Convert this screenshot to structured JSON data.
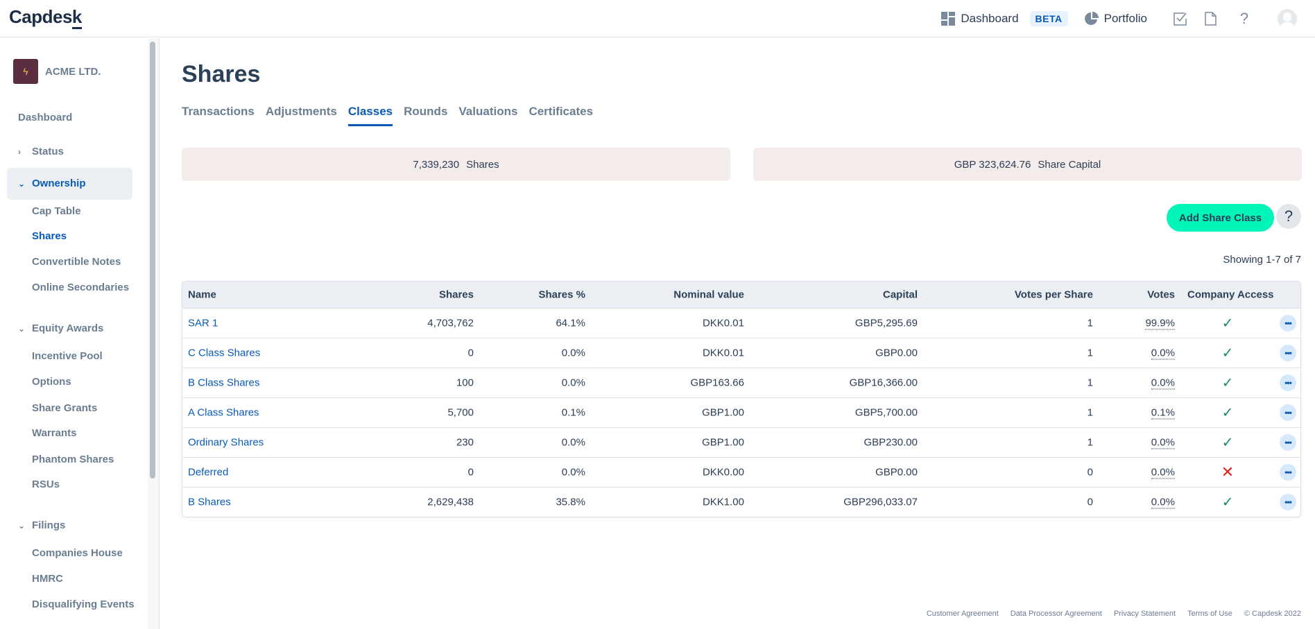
{
  "header": {
    "logo": "Capdesk",
    "dashboard_label": "Dashboard",
    "beta_badge": "BETA",
    "portfolio_label": "Portfolio"
  },
  "sidebar": {
    "company_name": "ACME LTD.",
    "dashboard": "Dashboard",
    "status": "Status",
    "ownership": "Ownership",
    "ownership_items": [
      "Cap Table",
      "Shares",
      "Convertible Notes",
      "Online Secondaries"
    ],
    "equity_awards": "Equity Awards",
    "equity_items": [
      "Incentive Pool",
      "Options",
      "Share Grants",
      "Warrants",
      "Phantom Shares",
      "RSUs"
    ],
    "filings": "Filings",
    "filings_items": [
      "Companies House",
      "HMRC",
      "Disqualifying Events"
    ]
  },
  "main": {
    "title": "Shares",
    "tabs": [
      "Transactions",
      "Adjustments",
      "Classes",
      "Rounds",
      "Valuations",
      "Certificates"
    ],
    "active_tab": "Classes",
    "summary": {
      "shares_value": "7,339,230",
      "shares_label": "Shares",
      "capital_value": "GBP 323,624.76",
      "capital_label": "Share Capital"
    },
    "add_button": "Add Share Class",
    "help_button": "?",
    "showing": "Showing 1-7 of 7"
  },
  "table": {
    "columns": [
      "Name",
      "Shares",
      "Shares %",
      "Nominal value",
      "Capital",
      "Votes per Share",
      "Votes",
      "Company Access"
    ],
    "rows": [
      [
        "SAR 1",
        "4,703,762",
        "64.1%",
        "DKK0.01",
        "GBP5,295.69",
        "1",
        "99.9%",
        true
      ],
      [
        "C Class Shares",
        "0",
        "0.0%",
        "DKK0.01",
        "GBP0.00",
        "1",
        "0.0%",
        true
      ],
      [
        "B Class Shares",
        "100",
        "0.0%",
        "GBP163.66",
        "GBP16,366.00",
        "1",
        "0.0%",
        true
      ],
      [
        "A Class Shares",
        "5,700",
        "0.1%",
        "GBP1.00",
        "GBP5,700.00",
        "1",
        "0.1%",
        true
      ],
      [
        "Ordinary Shares",
        "230",
        "0.0%",
        "GBP1.00",
        "GBP230.00",
        "1",
        "0.0%",
        true
      ],
      [
        "Deferred",
        "0",
        "0.0%",
        "DKK0.00",
        "GBP0.00",
        "0",
        "0.0%",
        false
      ],
      [
        "B Shares",
        "2,629,438",
        "35.8%",
        "DKK1.00",
        "GBP296,033.07",
        "0",
        "0.0%",
        true
      ]
    ]
  },
  "footer": [
    "Customer Agreement",
    "Data Processor Agreement",
    "Privacy Statement",
    "Terms of Use",
    "© Capdesk 2022"
  ],
  "colors": {
    "accent": "#0a5ab5",
    "add_button": "#00f5b8",
    "check": "#1a8a5a",
    "cross": "#e0201e",
    "summary_bg": "#f4ebeb"
  }
}
